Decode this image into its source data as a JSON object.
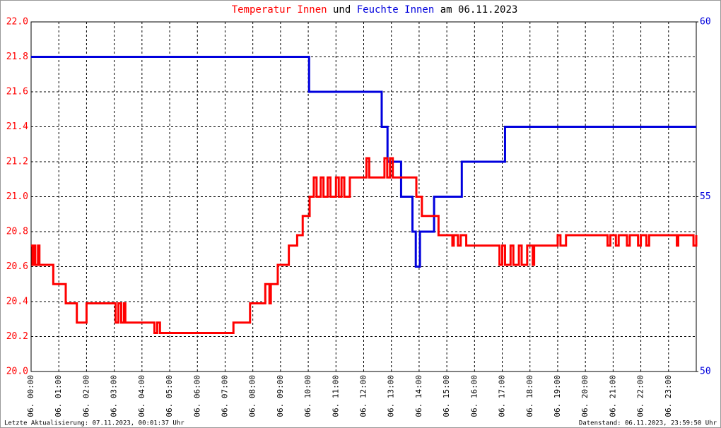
{
  "chart_data": {
    "type": "line",
    "title": [
      "Temperatur Innen",
      "und",
      "Feuchte Innen",
      "am 06.11.2023"
    ],
    "annotations": [
      "Letzte Aktualisierung: 07.11.2023, 00:01:37 Uhr",
      "Datenstand: 06.11.2023, 23:59:50 Uhr"
    ],
    "drawstyle": "steps-post",
    "grid": true,
    "xlim": [
      0,
      24
    ],
    "xticks": [
      {
        "value": 0,
        "label": "06. 00:00"
      },
      {
        "value": 1,
        "label": "06. 01:00"
      },
      {
        "value": 2,
        "label": "06. 02:00"
      },
      {
        "value": 3,
        "label": "06. 03:00"
      },
      {
        "value": 4,
        "label": "06. 04:00"
      },
      {
        "value": 5,
        "label": "06. 05:00"
      },
      {
        "value": 6,
        "label": "06. 06:00"
      },
      {
        "value": 7,
        "label": "06. 07:00"
      },
      {
        "value": 8,
        "label": "06. 08:00"
      },
      {
        "value": 9,
        "label": "06. 09:00"
      },
      {
        "value": 10,
        "label": "06. 10:00"
      },
      {
        "value": 11,
        "label": "06. 11:00"
      },
      {
        "value": 12,
        "label": "06. 12:00"
      },
      {
        "value": 13,
        "label": "06. 13:00"
      },
      {
        "value": 14,
        "label": "06. 14:00"
      },
      {
        "value": 15,
        "label": "06. 15:00"
      },
      {
        "value": 16,
        "label": "06. 16:00"
      },
      {
        "value": 17,
        "label": "06. 17:00"
      },
      {
        "value": 18,
        "label": "06. 18:00"
      },
      {
        "value": 19,
        "label": "06. 19:00"
      },
      {
        "value": 20,
        "label": "06. 20:00"
      },
      {
        "value": 21,
        "label": "06. 21:00"
      },
      {
        "value": 22,
        "label": "06. 22:00"
      },
      {
        "value": 23,
        "label": "06. 23:00"
      }
    ],
    "ylim": [
      20,
      22
    ],
    "yticks": [
      {
        "value": 20,
        "label": "20.0"
      },
      20.2,
      20.4,
      20.6,
      20.8,
      {
        "value": 21,
        "label": "21.0"
      },
      21.2,
      21.4,
      21.6,
      21.8,
      {
        "value": 22,
        "label": "22.0"
      }
    ],
    "y2lim": [
      50,
      60
    ],
    "y2ticks": [
      50,
      55,
      60
    ],
    "series": [
      {
        "name": "Temperatur Innen",
        "color": "#ff0000",
        "x": [
          0,
          0.05,
          0.1,
          0.15,
          0.25,
          0.3,
          0.8,
          1.25,
          1.65,
          2.0,
          3.05,
          3.15,
          3.25,
          3.35,
          3.4,
          4.45,
          4.55,
          4.65,
          7.3,
          7.9,
          8.45,
          8.6,
          8.65,
          8.9,
          9.3,
          9.6,
          9.8,
          10.05,
          10.2,
          10.3,
          10.45,
          10.55,
          10.7,
          10.8,
          11.0,
          11.1,
          11.2,
          11.3,
          11.5,
          12.1,
          12.2,
          12.75,
          12.85,
          12.95,
          13.05,
          13.9,
          14.1,
          14.7,
          15.2,
          15.25,
          15.4,
          15.5,
          15.7,
          16.9,
          17.0,
          17.1,
          17.3,
          17.4,
          17.6,
          17.7,
          17.9,
          18.1,
          18.15,
          19.0,
          19.1,
          19.3,
          20.8,
          20.9,
          21.1,
          21.2,
          21.5,
          21.6,
          21.9,
          22.0,
          22.2,
          22.3,
          23.3,
          23.35,
          23.9,
          24
        ],
        "values": [
          20.72,
          20.61,
          20.72,
          20.61,
          20.72,
          20.61,
          20.5,
          20.39,
          20.28,
          20.39,
          20.28,
          20.39,
          20.28,
          20.39,
          20.28,
          20.22,
          20.28,
          20.22,
          20.28,
          20.39,
          20.5,
          20.39,
          20.5,
          20.61,
          20.72,
          20.78,
          20.89,
          21.0,
          21.11,
          21.0,
          21.11,
          21.0,
          21.11,
          21.0,
          21.11,
          21.0,
          21.11,
          21.0,
          21.11,
          21.22,
          21.11,
          21.22,
          21.11,
          21.22,
          21.11,
          21.0,
          20.89,
          20.78,
          20.72,
          20.78,
          20.72,
          20.78,
          20.72,
          20.61,
          20.72,
          20.61,
          20.72,
          20.61,
          20.72,
          20.61,
          20.72,
          20.61,
          20.72,
          20.78,
          20.72,
          20.78,
          20.72,
          20.78,
          20.72,
          20.78,
          20.72,
          20.78,
          20.72,
          20.78,
          20.72,
          20.78,
          20.72,
          20.78,
          20.72,
          20.78
        ]
      },
      {
        "name": "Feuchte Innen",
        "color": "#0000dd",
        "axis": "y2",
        "x": [
          0,
          10.03,
          12.65,
          12.86,
          13.35,
          13.76,
          13.88,
          14.03,
          14.54,
          15.54,
          17.1,
          24
        ],
        "values": [
          59,
          58,
          57,
          56,
          55,
          54,
          53,
          54,
          55,
          56,
          57,
          57
        ]
      }
    ]
  }
}
